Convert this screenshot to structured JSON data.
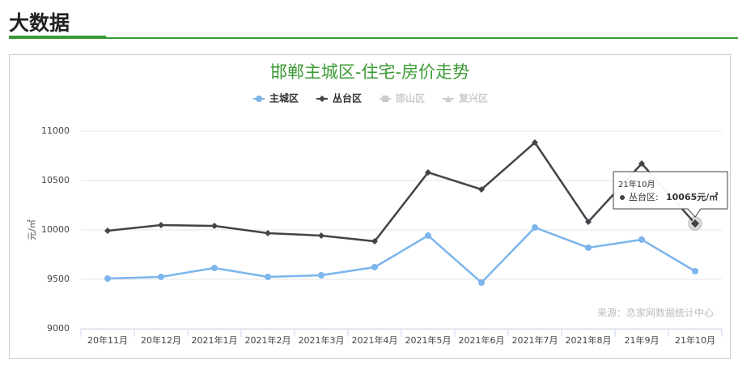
{
  "page_title": "大数据",
  "chart_data": {
    "type": "line",
    "title": "邯郸主城区-住宅-房价走势",
    "y_label": "元/㎡",
    "source": "来源：恋家网数据统计中心",
    "categories": [
      "20年11月",
      "20年12月",
      "2021年1月",
      "2021年2月",
      "2021年3月",
      "2021年4月",
      "2021年5月",
      "2021年6月",
      "2021年7月",
      "2021年8月",
      "21年9月",
      "21年10月"
    ],
    "series": [
      {
        "name": "主城区",
        "color": "#7cb5ec",
        "marker": "circle",
        "visible": true,
        "values": [
          9508,
          9525,
          9615,
          9525,
          9541,
          9623,
          9943,
          9467,
          10025,
          9820,
          9902,
          9582
        ]
      },
      {
        "name": "丛台区",
        "color": "#434348",
        "marker": "diamond",
        "visible": true,
        "values": [
          9992,
          10049,
          10041,
          9967,
          9943,
          9885,
          10582,
          10410,
          10885,
          10082,
          10672,
          10065
        ]
      },
      {
        "name": "邯山区",
        "color": "#cccccc",
        "marker": "square",
        "visible": false
      },
      {
        "name": "复兴区",
        "color": "#cccccc",
        "marker": "triangle",
        "visible": false
      }
    ],
    "ylim": [
      9000,
      11000
    ],
    "yticks": [
      9000,
      9500,
      10000,
      10500,
      11000
    ],
    "grid": true,
    "tooltip": {
      "title": "21年10月",
      "series_label": "丛台区:",
      "label": "10065元/㎡"
    }
  }
}
